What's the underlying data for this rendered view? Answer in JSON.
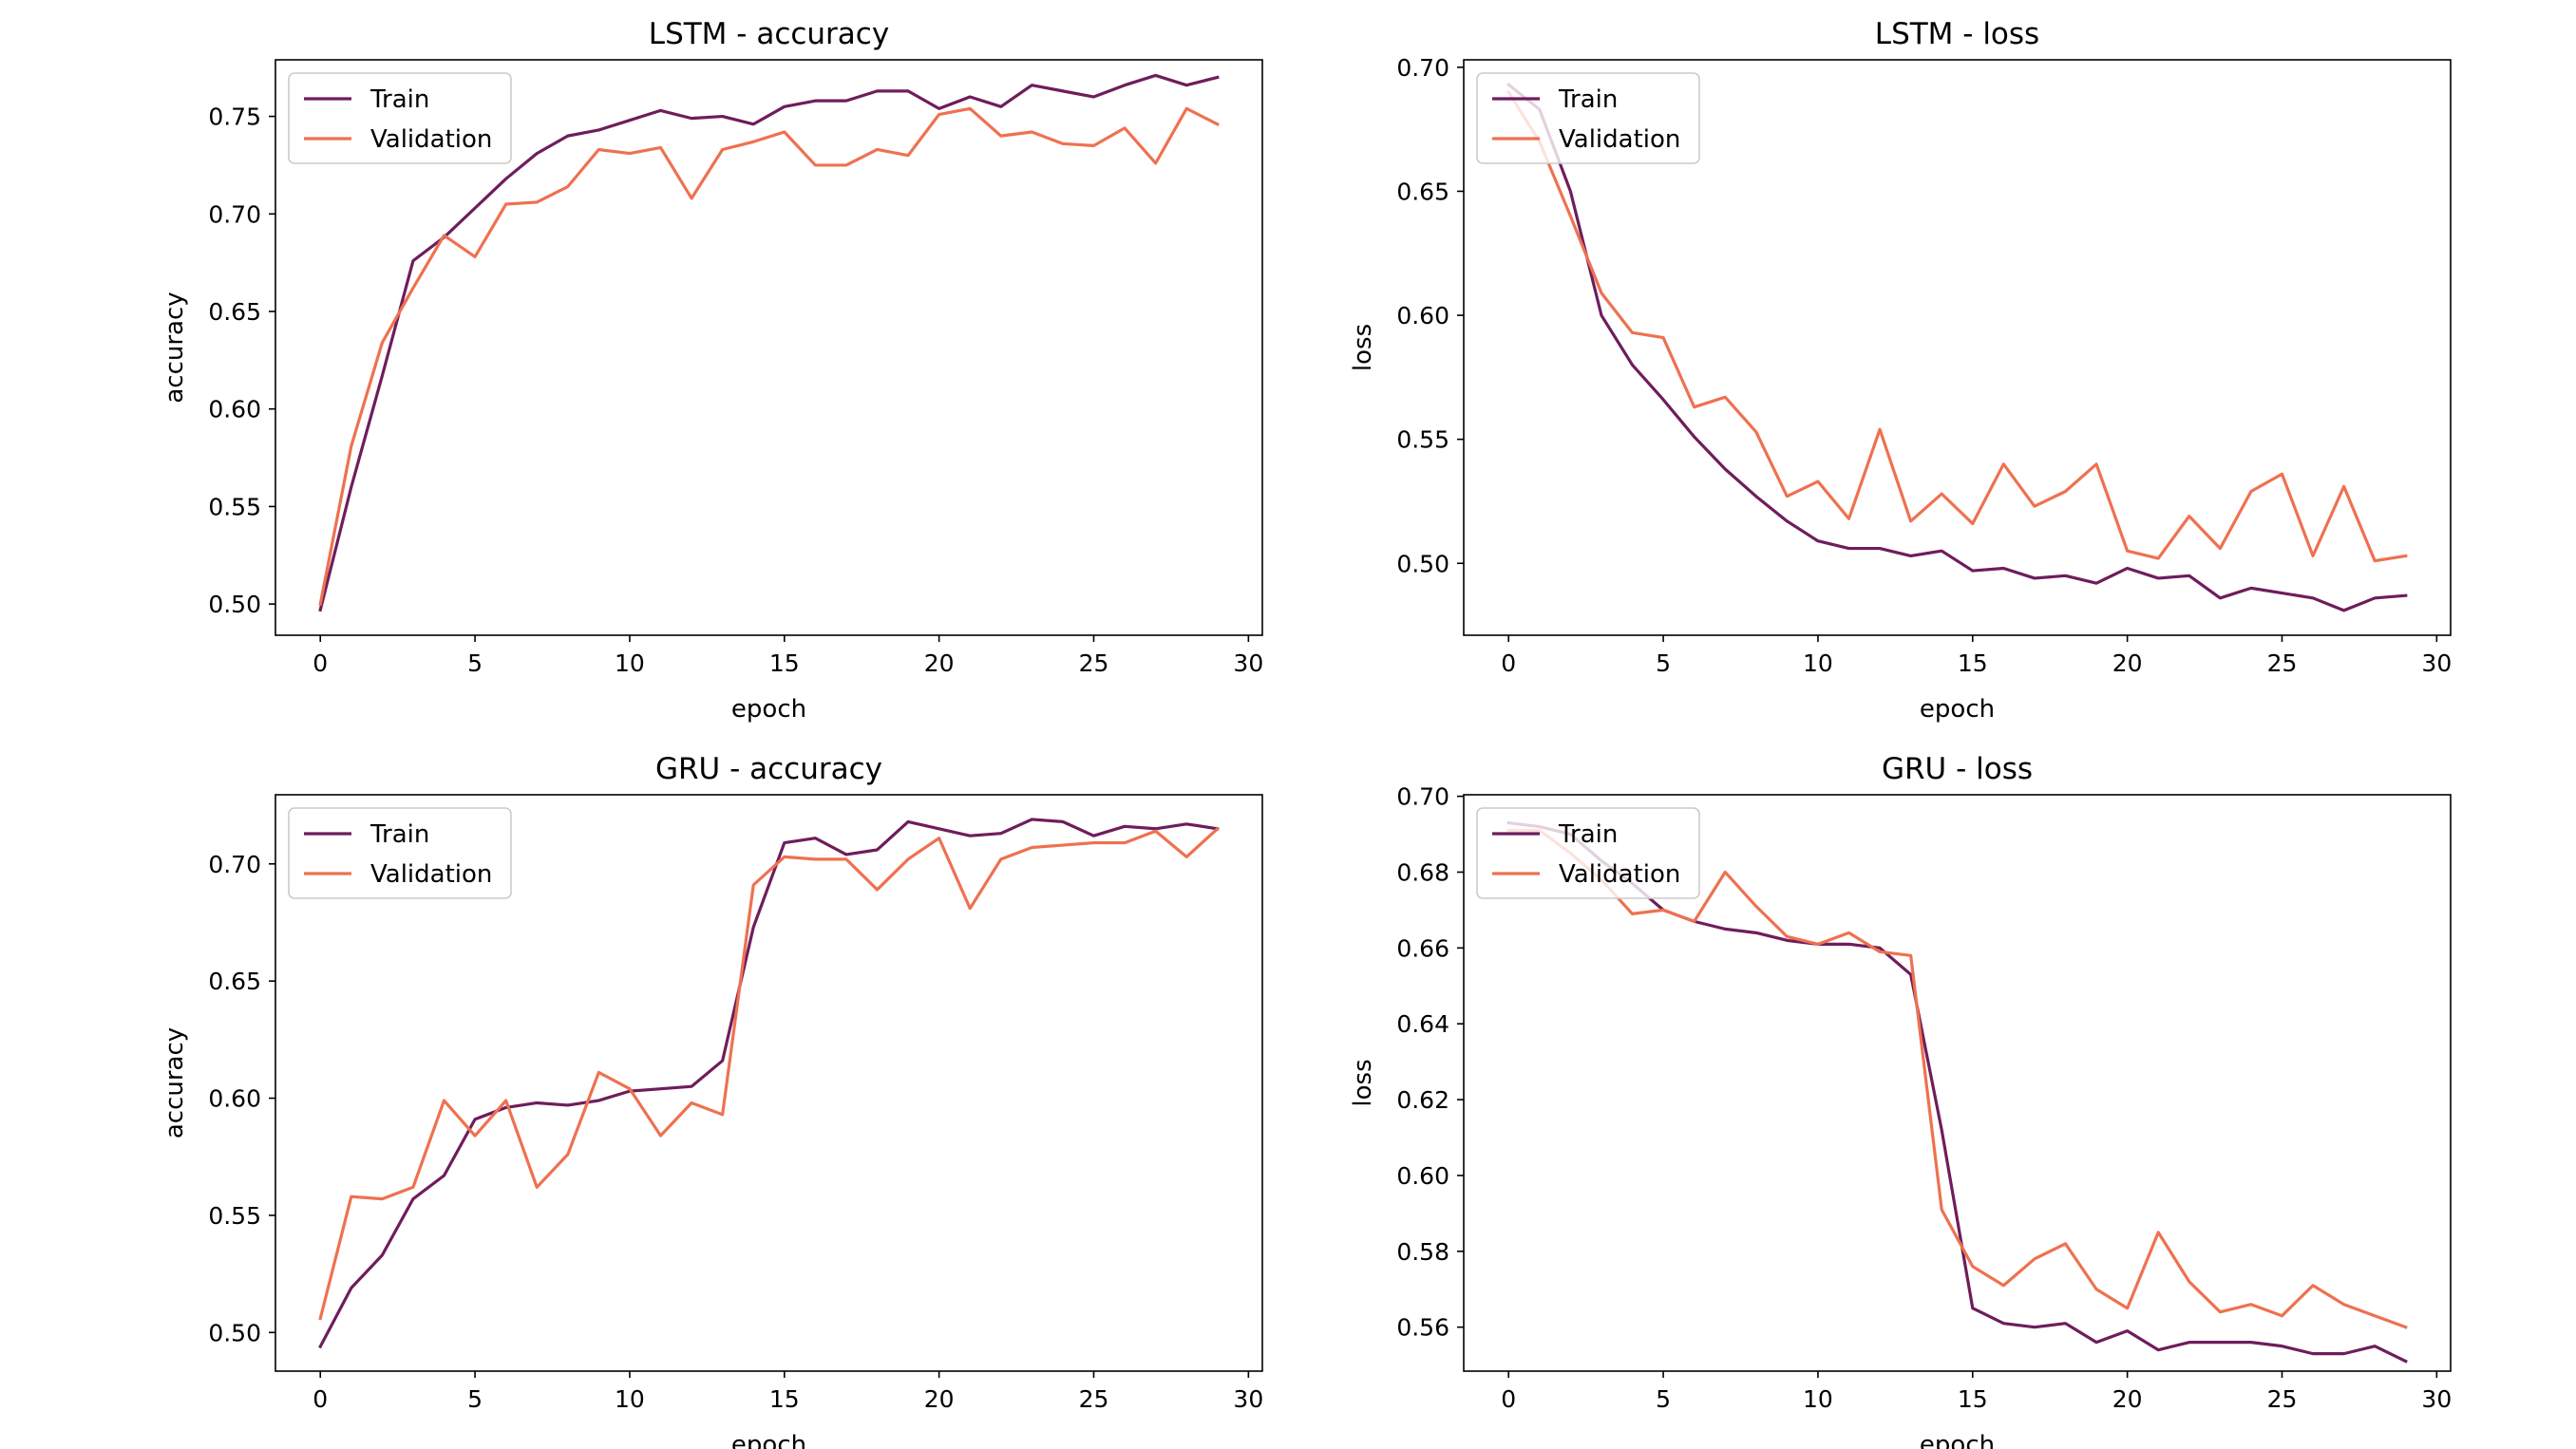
{
  "figure": {
    "background": "#ffffff"
  },
  "chart_data": [
    {
      "type": "line",
      "title": "LSTM - accuracy",
      "xlabel": "epoch",
      "ylabel": "accuracy",
      "xlim": [
        -1.45,
        30.45
      ],
      "ylim": [
        0.484,
        0.779
      ],
      "xticks": [
        0,
        5,
        10,
        15,
        20,
        25,
        30
      ],
      "yticks": [
        0.5,
        0.55,
        0.6,
        0.65,
        0.7,
        0.75
      ],
      "ytick_labels": [
        "0.50",
        "0.55",
        "0.60",
        "0.65",
        "0.70",
        "0.75"
      ],
      "grid": false,
      "legend_position": "upper left",
      "x": [
        0,
        1,
        2,
        3,
        4,
        5,
        6,
        7,
        8,
        9,
        10,
        11,
        12,
        13,
        14,
        15,
        16,
        17,
        18,
        19,
        20,
        21,
        22,
        23,
        24,
        25,
        26,
        27,
        28,
        29
      ],
      "series": [
        {
          "name": "Train",
          "color": "#6e1d5c",
          "values": [
            0.497,
            0.56,
            0.617,
            0.676,
            0.688,
            0.703,
            0.718,
            0.731,
            0.74,
            0.743,
            0.748,
            0.753,
            0.749,
            0.75,
            0.746,
            0.755,
            0.758,
            0.758,
            0.763,
            0.763,
            0.754,
            0.76,
            0.755,
            0.766,
            0.763,
            0.76,
            0.766,
            0.771,
            0.766,
            0.77
          ]
        },
        {
          "name": "Validation",
          "color": "#ee7150",
          "values": [
            0.5,
            0.581,
            0.634,
            0.662,
            0.689,
            0.678,
            0.705,
            0.706,
            0.714,
            0.733,
            0.731,
            0.734,
            0.708,
            0.733,
            0.737,
            0.742,
            0.725,
            0.725,
            0.733,
            0.73,
            0.751,
            0.754,
            0.74,
            0.742,
            0.736,
            0.735,
            0.744,
            0.726,
            0.754,
            0.746
          ]
        }
      ]
    },
    {
      "type": "line",
      "title": "LSTM - loss",
      "xlabel": "epoch",
      "ylabel": "loss",
      "xlim": [
        -1.45,
        30.45
      ],
      "ylim": [
        0.471,
        0.703
      ],
      "xticks": [
        0,
        5,
        10,
        15,
        20,
        25,
        30
      ],
      "yticks": [
        0.5,
        0.55,
        0.6,
        0.65,
        0.7
      ],
      "ytick_labels": [
        "0.50",
        "0.55",
        "0.60",
        "0.65",
        "0.70"
      ],
      "grid": false,
      "legend_position": "upper left",
      "x": [
        0,
        1,
        2,
        3,
        4,
        5,
        6,
        7,
        8,
        9,
        10,
        11,
        12,
        13,
        14,
        15,
        16,
        17,
        18,
        19,
        20,
        21,
        22,
        23,
        24,
        25,
        26,
        27,
        28,
        29
      ],
      "series": [
        {
          "name": "Train",
          "color": "#6e1d5c",
          "values": [
            0.693,
            0.683,
            0.65,
            0.6,
            0.58,
            0.566,
            0.551,
            0.538,
            0.527,
            0.517,
            0.509,
            0.506,
            0.506,
            0.503,
            0.505,
            0.497,
            0.498,
            0.494,
            0.495,
            0.492,
            0.498,
            0.494,
            0.495,
            0.486,
            0.49,
            0.488,
            0.486,
            0.481,
            0.486,
            0.487
          ]
        },
        {
          "name": "Validation",
          "color": "#ee7150",
          "values": [
            0.69,
            0.67,
            0.64,
            0.609,
            0.593,
            0.591,
            0.563,
            0.567,
            0.553,
            0.527,
            0.533,
            0.518,
            0.554,
            0.517,
            0.528,
            0.516,
            0.54,
            0.523,
            0.529,
            0.54,
            0.505,
            0.502,
            0.519,
            0.506,
            0.529,
            0.536,
            0.503,
            0.531,
            0.501,
            0.503
          ]
        }
      ]
    },
    {
      "type": "line",
      "title": "GRU - accuracy",
      "xlabel": "epoch",
      "ylabel": "accuracy",
      "xlim": [
        -1.45,
        30.45
      ],
      "ylim": [
        0.4835,
        0.7295
      ],
      "xticks": [
        0,
        5,
        10,
        15,
        20,
        25,
        30
      ],
      "yticks": [
        0.5,
        0.55,
        0.6,
        0.65,
        0.7
      ],
      "ytick_labels": [
        "0.50",
        "0.55",
        "0.60",
        "0.65",
        "0.70"
      ],
      "grid": false,
      "legend_position": "upper left",
      "x": [
        0,
        1,
        2,
        3,
        4,
        5,
        6,
        7,
        8,
        9,
        10,
        11,
        12,
        13,
        14,
        15,
        16,
        17,
        18,
        19,
        20,
        21,
        22,
        23,
        24,
        25,
        26,
        27,
        28,
        29
      ],
      "series": [
        {
          "name": "Train",
          "color": "#6e1d5c",
          "values": [
            0.494,
            0.519,
            0.533,
            0.557,
            0.567,
            0.591,
            0.596,
            0.598,
            0.597,
            0.599,
            0.603,
            0.604,
            0.605,
            0.616,
            0.673,
            0.709,
            0.711,
            0.704,
            0.706,
            0.718,
            0.715,
            0.712,
            0.713,
            0.719,
            0.718,
            0.712,
            0.716,
            0.715,
            0.717,
            0.715
          ]
        },
        {
          "name": "Validation",
          "color": "#ee7150",
          "values": [
            0.506,
            0.558,
            0.557,
            0.562,
            0.599,
            0.584,
            0.599,
            0.562,
            0.576,
            0.611,
            0.604,
            0.584,
            0.598,
            0.593,
            0.691,
            0.703,
            0.702,
            0.702,
            0.689,
            0.702,
            0.711,
            0.681,
            0.702,
            0.707,
            0.708,
            0.709,
            0.709,
            0.714,
            0.703,
            0.715
          ]
        }
      ]
    },
    {
      "type": "line",
      "title": "GRU - loss",
      "xlabel": "epoch",
      "ylabel": "loss",
      "xlim": [
        -1.45,
        30.45
      ],
      "ylim": [
        0.5484,
        0.7004
      ],
      "xticks": [
        0,
        5,
        10,
        15,
        20,
        25,
        30
      ],
      "yticks": [
        0.56,
        0.58,
        0.6,
        0.62,
        0.64,
        0.66,
        0.68,
        0.7
      ],
      "ytick_labels": [
        "0.56",
        "0.58",
        "0.60",
        "0.62",
        "0.64",
        "0.66",
        "0.68",
        "0.70"
      ],
      "grid": false,
      "legend_position": "upper left",
      "x": [
        0,
        1,
        2,
        3,
        4,
        5,
        6,
        7,
        8,
        9,
        10,
        11,
        12,
        13,
        14,
        15,
        16,
        17,
        18,
        19,
        20,
        21,
        22,
        23,
        24,
        25,
        26,
        27,
        28,
        29
      ],
      "series": [
        {
          "name": "Train",
          "color": "#6e1d5c",
          "values": [
            0.693,
            0.692,
            0.69,
            0.683,
            0.677,
            0.67,
            0.667,
            0.665,
            0.664,
            0.662,
            0.661,
            0.661,
            0.66,
            0.653,
            0.612,
            0.565,
            0.561,
            0.56,
            0.561,
            0.556,
            0.559,
            0.554,
            0.556,
            0.556,
            0.556,
            0.555,
            0.553,
            0.553,
            0.555,
            0.551
          ]
        },
        {
          "name": "Validation",
          "color": "#ee7150",
          "values": [
            0.691,
            0.691,
            0.685,
            0.678,
            0.669,
            0.67,
            0.667,
            0.68,
            0.671,
            0.663,
            0.661,
            0.664,
            0.659,
            0.658,
            0.591,
            0.576,
            0.571,
            0.578,
            0.582,
            0.57,
            0.565,
            0.585,
            0.572,
            0.564,
            0.566,
            0.563,
            0.571,
            0.566,
            0.563,
            0.56
          ]
        }
      ]
    }
  ]
}
